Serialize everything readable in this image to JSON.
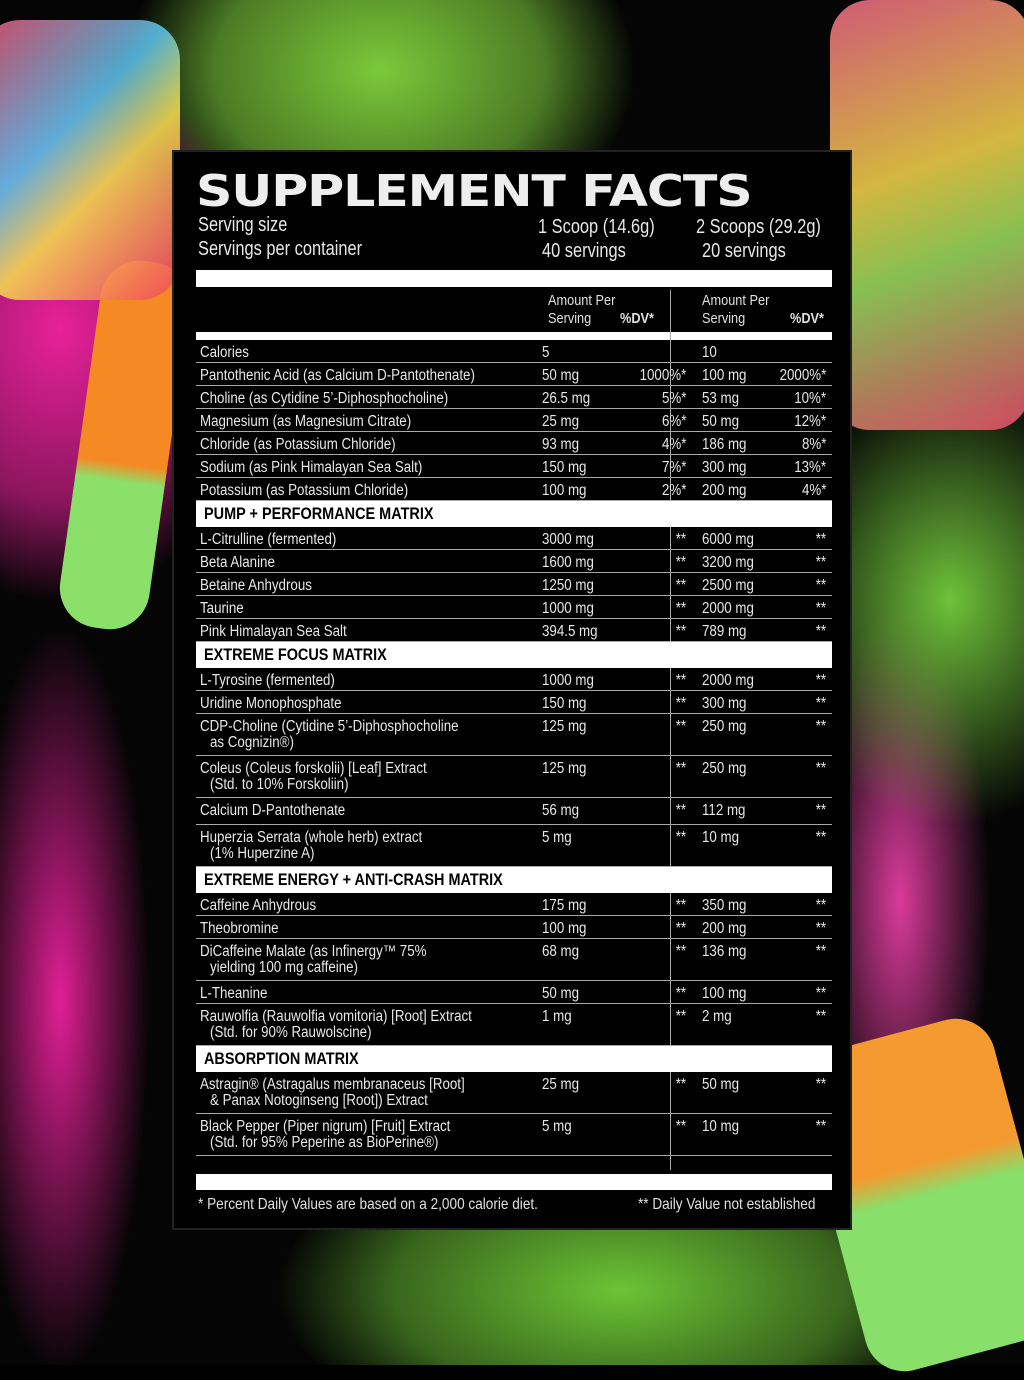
{
  "title": "SUPPLEMENT FACTS",
  "serving": {
    "size_label": "Serving size",
    "per_container_label": "Servings per container",
    "col1_size": "1 Scoop (14.6g)",
    "col1_count": "40 servings",
    "col2_size": "2 Scoops (29.2g)",
    "col2_count": "20 servings"
  },
  "columns": {
    "amount_line1": "Amount Per",
    "amount_line2": "Serving",
    "dv": "%DV*"
  },
  "rows": [
    {
      "name": "Calories",
      "a1": "5",
      "d1": "",
      "a2": "10",
      "d2": ""
    },
    {
      "name": "Pantothenic Acid (as Calcium D-Pantothenate)",
      "a1": "50 mg",
      "d1": "1000%*",
      "a2": "100 mg",
      "d2": "2000%*"
    },
    {
      "name": "Choline (as Cytidine 5’-Diphosphocholine)",
      "a1": "26.5 mg",
      "d1": "5%*",
      "a2": "53 mg",
      "d2": "10%*"
    },
    {
      "name": "Magnesium (as Magnesium Citrate)",
      "a1": "25 mg",
      "d1": "6%*",
      "a2": "50 mg",
      "d2": "12%*"
    },
    {
      "name": "Chloride (as Potassium Chloride)",
      "a1": "93 mg",
      "d1": "4%*",
      "a2": "186 mg",
      "d2": "8%*"
    },
    {
      "name": "Sodium (as Pink Himalayan Sea Salt)",
      "a1": "150 mg",
      "d1": "7%*",
      "a2": "300 mg",
      "d2": "13%*"
    },
    {
      "name": "Potassium (as Potassium Chloride)",
      "a1": "100 mg",
      "d1": "2%*",
      "a2": "200 mg",
      "d2": "4%*"
    },
    {
      "section": "PUMP + PERFORMANCE MATRIX"
    },
    {
      "name": "L-Citrulline (fermented)",
      "a1": "3000 mg",
      "d1": "**",
      "a2": "6000 mg",
      "d2": "**"
    },
    {
      "name": "Beta Alanine",
      "a1": "1600 mg",
      "d1": "**",
      "a2": "3200 mg",
      "d2": "**"
    },
    {
      "name": "Betaine Anhydrous",
      "a1": "1250 mg",
      "d1": "**",
      "a2": "2500 mg",
      "d2": "**"
    },
    {
      "name": "Taurine",
      "a1": "1000 mg",
      "d1": "**",
      "a2": "2000 mg",
      "d2": "**"
    },
    {
      "name": "Pink Himalayan Sea Salt",
      "a1": "394.5 mg",
      "d1": "**",
      "a2": "789 mg",
      "d2": "**"
    },
    {
      "section": "EXTREME FOCUS MATRIX"
    },
    {
      "name": "L-Tyrosine (fermented)",
      "a1": "1000 mg",
      "d1": "**",
      "a2": "2000 mg",
      "d2": "**"
    },
    {
      "name": "Uridine Monophosphate",
      "a1": "150 mg",
      "d1": "**",
      "a2": "300 mg",
      "d2": "**"
    },
    {
      "name": "CDP-Choline (Cytidine 5’-Diphosphocholine",
      "name2": "as Cognizin®)",
      "a1": "125 mg",
      "d1": "**",
      "a2": "250 mg",
      "d2": "**"
    },
    {
      "name": "Coleus (Coleus forskolii) [Leaf] Extract",
      "name2": "(Std. to 10% Forskoliin)",
      "a1": "125 mg",
      "d1": "**",
      "a2": "250 mg",
      "d2": "**"
    },
    {
      "name": "Calcium D-Pantothenate",
      "a1": "56 mg",
      "d1": "**",
      "a2": "112 mg",
      "d2": "**",
      "tall": true
    },
    {
      "name": "Huperzia Serrata (whole herb) extract",
      "name2": "(1% Huperzine A)",
      "a1": "5 mg",
      "d1": "**",
      "a2": "10 mg",
      "d2": "**"
    },
    {
      "section": "EXTREME ENERGY + ANTI-CRASH MATRIX"
    },
    {
      "name": "Caffeine Anhydrous",
      "a1": "175 mg",
      "d1": "**",
      "a2": "350 mg",
      "d2": "**"
    },
    {
      "name": "Theobromine",
      "a1": "100 mg",
      "d1": "**",
      "a2": "200 mg",
      "d2": "**"
    },
    {
      "name": "DiCaffeine Malate (as Infinergy™ 75%",
      "name2": "yielding 100 mg caffeine)",
      "a1": "68 mg",
      "d1": "**",
      "a2": "136 mg",
      "d2": "**"
    },
    {
      "name": "L-Theanine",
      "a1": "50 mg",
      "d1": "**",
      "a2": "100 mg",
      "d2": "**"
    },
    {
      "name": "Rauwolfia (Rauwolfia vomitoria) [Root] Extract",
      "name2": "(Std. for 90% Rauwolscine)",
      "a1": "1 mg",
      "d1": "**",
      "a2": "2 mg",
      "d2": "**"
    },
    {
      "section": "ABSORPTION MATRIX"
    },
    {
      "name": "Astragin® (Astragalus membranaceus [Root]",
      "name2": "& Panax Notoginseng [Root]) Extract",
      "a1": "25 mg",
      "d1": "**",
      "a2": "50 mg",
      "d2": "**"
    },
    {
      "name": "Black Pepper (Piper nigrum) [Fruit] Extract",
      "name2": "(Std. for 95% Peperine as BioPerine®)",
      "a1": "5 mg",
      "d1": "**",
      "a2": "10 mg",
      "d2": "**"
    }
  ],
  "footer": {
    "left": "* Percent Daily Values are based on a 2,000 calorie diet.",
    "right": "** Daily Value not established"
  },
  "colors": {
    "pink": "#e8219a",
    "green": "#6cc435",
    "panel": "#000000"
  }
}
